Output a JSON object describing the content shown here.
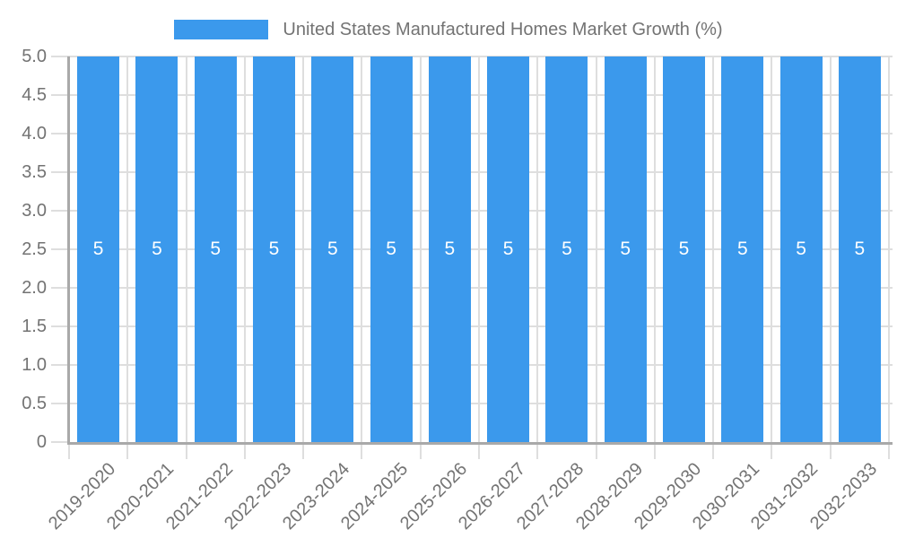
{
  "chart_data": {
    "type": "bar",
    "title": "",
    "legend": "United States Manufactured Homes Market Growth (%)",
    "legend_position": "top",
    "categories": [
      "2019-2020",
      "2020-2021",
      "2021-2022",
      "2022-2023",
      "2023-2024",
      "2024-2025",
      "2025-2026",
      "2026-2027",
      "2027-2028",
      "2028-2029",
      "2029-2030",
      "2030-2031",
      "2031-2032",
      "2032-2033"
    ],
    "values": [
      5,
      5,
      5,
      5,
      5,
      5,
      5,
      5,
      5,
      5,
      5,
      5,
      5,
      5
    ],
    "bar_value_labels": [
      "5",
      "5",
      "5",
      "5",
      "5",
      "5",
      "5",
      "5",
      "5",
      "5",
      "5",
      "5",
      "5",
      "5"
    ],
    "xlabel": "",
    "ylabel": "",
    "ylim": [
      0,
      5
    ],
    "y_tick_step": 0.5,
    "y_tick_labels": [
      "0",
      "0.5",
      "1.0",
      "1.5",
      "2.0",
      "2.5",
      "3.0",
      "3.5",
      "4.0",
      "4.5",
      "5.0"
    ],
    "grid": true,
    "x_label_rotation_deg": -45,
    "colors": {
      "bar": "#3B99EC",
      "text": "#737373",
      "grid": "#DEDEDE",
      "axis": "#A9A9A9",
      "bar_label": "#FFFFFF",
      "background": "#FFFFFF"
    }
  }
}
